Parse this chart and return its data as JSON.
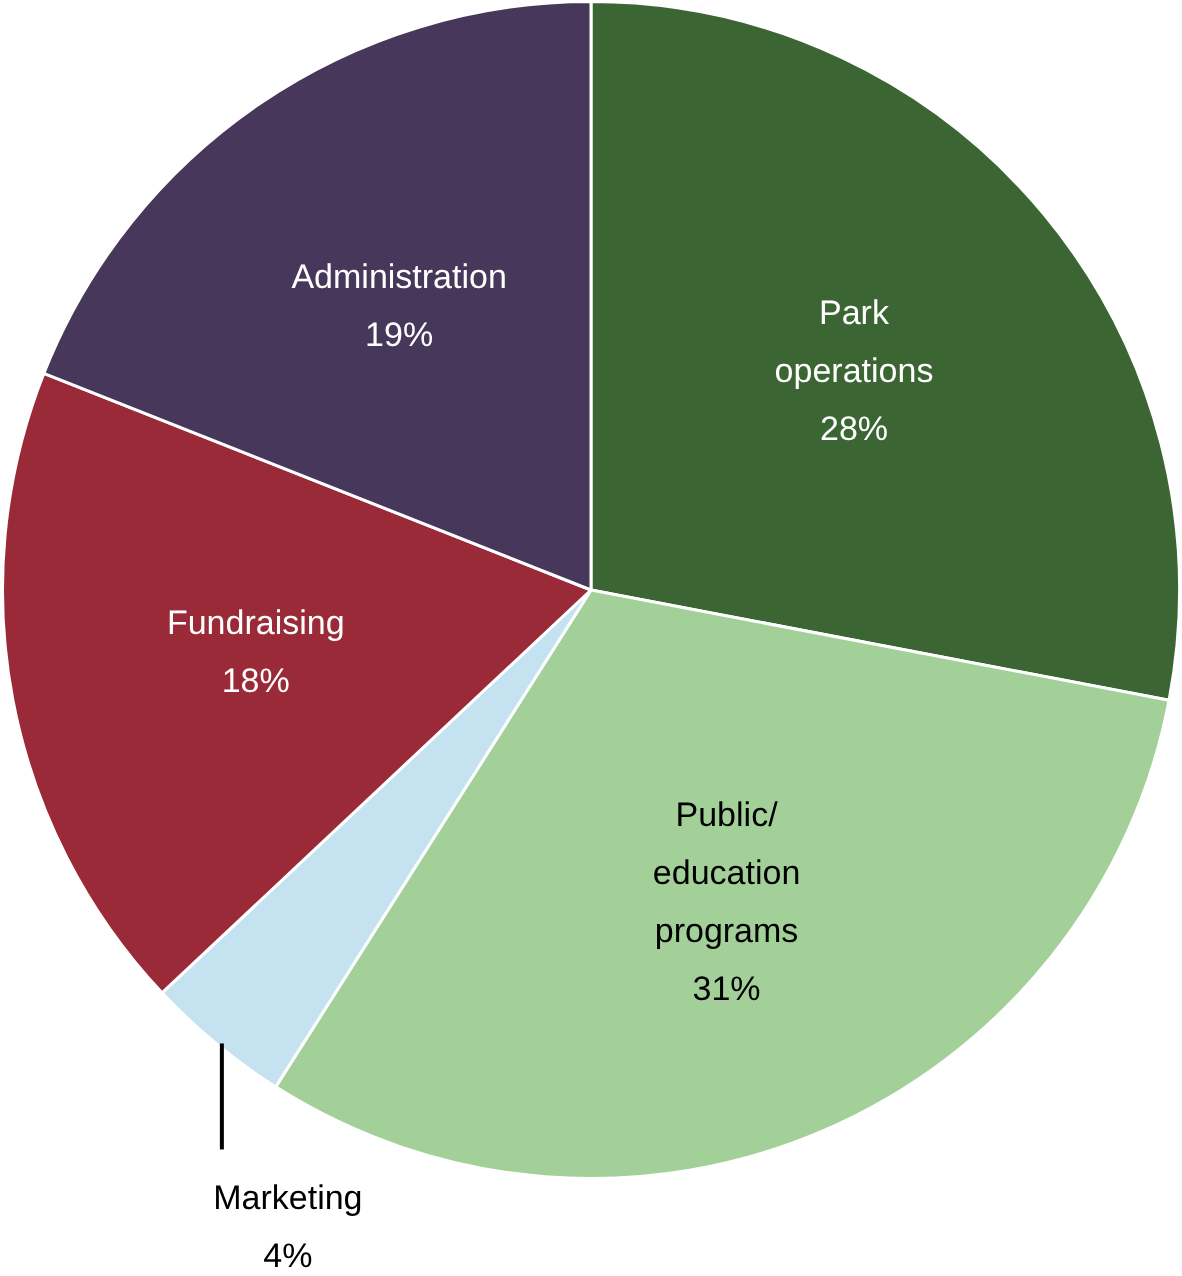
{
  "chart_data": {
    "type": "pie",
    "categories": [
      "Park operations",
      "Public/education programs",
      "Marketing",
      "Fundraising",
      "Administration"
    ],
    "values": [
      28,
      31,
      4,
      18,
      19
    ],
    "colors": [
      "#3b6532",
      "#a3cf99",
      "#c5e2f1",
      "#9b2a38",
      "#47375a"
    ],
    "value_labels": [
      "28%",
      "31%",
      "4%",
      "18%",
      "19%"
    ],
    "legend": false
  }
}
